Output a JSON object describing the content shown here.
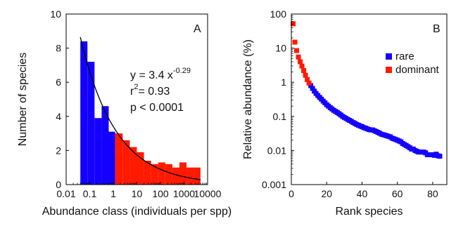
{
  "chart_data": [
    {
      "type": "bar",
      "panel_label": "A",
      "xlabel": "Abundance class (individuals per spp)",
      "ylabel": "Number of species",
      "xscale": "log",
      "xlim": [
        0.01,
        10000
      ],
      "ylim": [
        0,
        10
      ],
      "xticks": [
        0.01,
        0.1,
        1,
        10,
        100,
        1000,
        10000
      ],
      "xtick_labels": [
        "0.01",
        "0.1",
        "1",
        "10",
        "100",
        "1000",
        "10000"
      ],
      "yticks": [
        0,
        2,
        4,
        6,
        8,
        10
      ],
      "ytick_labels": [
        "0",
        "2",
        "4",
        "6",
        "8",
        "10"
      ],
      "series": [
        {
          "color": "#1400ff",
          "bins": [
            {
              "x0": 0.04,
              "x1": 0.08,
              "value": 8.4
            },
            {
              "x0": 0.08,
              "x1": 0.16,
              "value": 7.2
            },
            {
              "x0": 0.16,
              "x1": 0.32,
              "value": 3.9
            },
            {
              "x0": 0.32,
              "x1": 0.64,
              "value": 4.6
            },
            {
              "x0": 0.64,
              "x1": 1.2,
              "value": 3.1
            }
          ]
        },
        {
          "color": "#ff1a00",
          "bins": [
            {
              "x0": 1.2,
              "x1": 2.5,
              "value": 3.0
            },
            {
              "x0": 2.5,
              "x1": 5,
              "value": 2.6
            },
            {
              "x0": 5,
              "x1": 10,
              "value": 2.2
            },
            {
              "x0": 10,
              "x1": 20,
              "value": 1.9
            },
            {
              "x0": 20,
              "x1": 40,
              "value": 1.4
            },
            {
              "x0": 40,
              "x1": 80,
              "value": 1.2
            },
            {
              "x0": 80,
              "x1": 160,
              "value": 1.3
            },
            {
              "x0": 160,
              "x1": 320,
              "value": 1.2
            },
            {
              "x0": 320,
              "x1": 640,
              "value": 1.0
            },
            {
              "x0": 640,
              "x1": 1280,
              "value": 1.3
            },
            {
              "x0": 1280,
              "x1": 2600,
              "value": 1.0
            },
            {
              "x0": 2600,
              "x1": 5000,
              "value": 1.0
            }
          ]
        }
      ],
      "fit": {
        "a": 3.4,
        "b": -0.29,
        "x_from": 0.04,
        "x_to": 5000,
        "color": "#000000"
      },
      "annotation": {
        "eq_prefix": "y = 3.4 x",
        "eq_exponent": "-0.29",
        "r_prefix": "r",
        "r_exponent": "2",
        "r_suffix": "= 0.93",
        "p_text": "p < 0.0001"
      }
    },
    {
      "type": "scatter",
      "panel_label": "B",
      "xlabel": "Rank species",
      "ylabel": "Relative abundance (%)",
      "yscale": "log",
      "xlim": [
        0,
        88
      ],
      "ylim": [
        0.001,
        100
      ],
      "xticks": [
        0,
        20,
        40,
        60,
        80
      ],
      "xtick_labels": [
        "0",
        "20",
        "40",
        "60",
        "80"
      ],
      "yticks": [
        0.001,
        0.01,
        0.1,
        1,
        10,
        100
      ],
      "ytick_labels": [
        "0.001",
        "0.01",
        "0.1",
        "1",
        "10",
        "100"
      ],
      "legend_position": "top-right",
      "series": [
        {
          "name": "rare",
          "color": "#1400ff",
          "x": [
            11,
            12,
            13,
            14,
            15,
            16,
            17,
            18,
            19,
            20,
            21,
            22,
            23,
            24,
            25,
            26,
            27,
            28,
            29,
            30,
            31,
            32,
            33,
            34,
            35,
            36,
            37,
            38,
            39,
            40,
            41,
            42,
            43,
            44,
            45,
            46,
            47,
            48,
            49,
            50,
            51,
            52,
            53,
            54,
            55,
            56,
            57,
            58,
            59,
            60,
            61,
            62,
            63,
            64,
            65,
            66,
            67,
            68,
            69,
            70,
            71,
            72,
            73,
            74,
            75,
            76,
            77,
            78,
            79,
            80,
            81,
            82,
            83,
            84
          ],
          "y": [
            0.8,
            0.66,
            0.55,
            0.47,
            0.41,
            0.36,
            0.32,
            0.28,
            0.25,
            0.22,
            0.2,
            0.18,
            0.165,
            0.15,
            0.14,
            0.13,
            0.12,
            0.11,
            0.1,
            0.093,
            0.087,
            0.081,
            0.076,
            0.071,
            0.066,
            0.062,
            0.058,
            0.055,
            0.052,
            0.05,
            0.047,
            0.045,
            0.043,
            0.041,
            0.04,
            0.04,
            0.038,
            0.036,
            0.034,
            0.032,
            0.03,
            0.029,
            0.028,
            0.027,
            0.026,
            0.025,
            0.023,
            0.022,
            0.021,
            0.02,
            0.019,
            0.018,
            0.016,
            0.015,
            0.014,
            0.013,
            0.012,
            0.011,
            0.011,
            0.01,
            0.0095,
            0.009,
            0.009,
            0.009,
            0.009,
            0.0085,
            0.0075,
            0.0075,
            0.0075,
            0.0075,
            0.0072,
            0.0078,
            0.007,
            0.0068
          ]
        },
        {
          "name": "dominant",
          "color": "#ff1a00",
          "x": [
            1,
            2,
            3,
            4,
            5,
            6,
            7,
            8,
            9,
            10
          ],
          "y": [
            52,
            15,
            8.5,
            5.5,
            4,
            3,
            2.2,
            1.6,
            1.2,
            0.95
          ]
        }
      ]
    }
  ]
}
